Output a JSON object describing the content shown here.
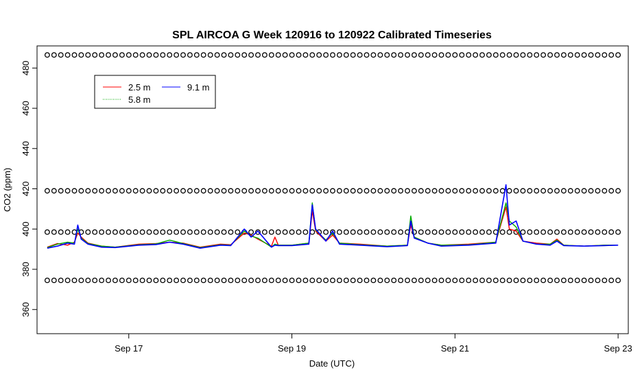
{
  "chart_data": {
    "type": "line",
    "title": "SPL AIRCOA G  Week 120916 to 120922  Calibrated Timeseries",
    "xlabel": "Date (UTC)",
    "ylabel": "CO2 (ppm)",
    "xlim": [
      "2012-09-15 21:00",
      "2012-09-23 03:00"
    ],
    "ylim": [
      348,
      491
    ],
    "x_ticks": [
      {
        "date": "2012-09-17 00:00",
        "label": "Sep 17"
      },
      {
        "date": "2012-09-19 00:00",
        "label": "Sep 19"
      },
      {
        "date": "2012-09-21 00:00",
        "label": "Sep 21"
      },
      {
        "date": "2012-09-23 00:00",
        "label": "Sep 23"
      }
    ],
    "y_ticks": [
      360,
      380,
      400,
      420,
      440,
      460,
      480
    ],
    "grid": false,
    "legend": {
      "placement": "top-left",
      "entries": [
        {
          "name": "2.5 m",
          "color": "#ff0000",
          "style": "solid"
        },
        {
          "name": "9.1 m",
          "color": "#0000ff",
          "style": "solid"
        },
        {
          "name": "5.8 m",
          "color": "#00aa00",
          "style": "dotted"
        }
      ]
    },
    "calibration_points": {
      "marker": "circle",
      "color": "#000000",
      "levels": [
        486.5,
        419,
        398.5,
        374.5
      ],
      "start": "2012-09-16 00:00",
      "end": "2012-09-23 00:00",
      "every_hours": 2
    },
    "series": [
      {
        "name": "2.5 m",
        "color": "#ff0000",
        "points": [
          [
            "2012-09-16 00:00",
            391
          ],
          [
            "2012-09-16 03:00",
            392.8
          ],
          [
            "2012-09-16 06:00",
            392
          ],
          [
            "2012-09-16 08:00",
            393.5
          ],
          [
            "2012-09-16 09:00",
            398
          ],
          [
            "2012-09-16 10:00",
            396
          ],
          [
            "2012-09-16 12:00",
            393
          ],
          [
            "2012-09-16 16:00",
            391.5
          ],
          [
            "2012-09-16 20:00",
            391
          ],
          [
            "2012-09-17 03:00",
            392.5
          ],
          [
            "2012-09-17 08:00",
            392.8
          ],
          [
            "2012-09-17 12:00",
            393.5
          ],
          [
            "2012-09-17 16:00",
            393
          ],
          [
            "2012-09-17 21:00",
            391
          ],
          [
            "2012-09-18 03:00",
            392.5
          ],
          [
            "2012-09-18 06:00",
            392.2
          ],
          [
            "2012-09-18 10:00",
            398
          ],
          [
            "2012-09-18 12:00",
            397
          ],
          [
            "2012-09-18 14:00",
            395
          ],
          [
            "2012-09-18 18:00",
            391.5
          ],
          [
            "2012-09-18 19:00",
            396
          ],
          [
            "2012-09-18 20:00",
            392
          ],
          [
            "2012-09-19 00:00",
            392
          ],
          [
            "2012-09-19 05:00",
            393
          ],
          [
            "2012-09-19 06:00",
            409
          ],
          [
            "2012-09-19 07:00",
            399
          ],
          [
            "2012-09-19 10:00",
            394
          ],
          [
            "2012-09-19 12:00",
            397
          ],
          [
            "2012-09-19 14:00",
            393
          ],
          [
            "2012-09-19 20:00",
            392.5
          ],
          [
            "2012-09-20 04:00",
            391.5
          ],
          [
            "2012-09-20 10:00",
            392
          ],
          [
            "2012-09-20 11:00",
            402
          ],
          [
            "2012-09-20 12:00",
            396
          ],
          [
            "2012-09-20 16:00",
            393
          ],
          [
            "2012-09-20 20:00",
            392
          ],
          [
            "2012-09-21 04:00",
            392.5
          ],
          [
            "2012-09-21 08:00",
            393
          ],
          [
            "2012-09-21 12:00",
            393.5
          ],
          [
            "2012-09-21 15:00",
            411
          ],
          [
            "2012-09-21 16:00",
            400
          ],
          [
            "2012-09-21 18:00",
            399
          ],
          [
            "2012-09-21 20:00",
            394
          ],
          [
            "2012-09-22 00:00",
            393
          ],
          [
            "2012-09-22 04:00",
            392.5
          ],
          [
            "2012-09-22 06:00",
            395
          ],
          [
            "2012-09-22 08:00",
            392
          ],
          [
            "2012-09-22 14:00",
            391.5
          ],
          [
            "2012-09-22 20:00",
            392
          ],
          [
            "2012-09-23 00:00",
            392
          ]
        ]
      },
      {
        "name": "5.8 m",
        "color": "#00aa00",
        "points": [
          [
            "2012-09-16 00:00",
            390.8
          ],
          [
            "2012-09-16 03:00",
            392.5
          ],
          [
            "2012-09-16 06:00",
            393.5
          ],
          [
            "2012-09-16 08:00",
            393
          ],
          [
            "2012-09-16 09:00",
            400
          ],
          [
            "2012-09-16 10:00",
            395.5
          ],
          [
            "2012-09-16 12:00",
            392.8
          ],
          [
            "2012-09-16 16:00",
            391.5
          ],
          [
            "2012-09-16 20:00",
            391
          ],
          [
            "2012-09-17 03:00",
            392.2
          ],
          [
            "2012-09-17 08:00",
            392.6
          ],
          [
            "2012-09-17 12:00",
            394.5
          ],
          [
            "2012-09-17 16:00",
            392.8
          ],
          [
            "2012-09-17 21:00",
            390.8
          ],
          [
            "2012-09-18 03:00",
            392.2
          ],
          [
            "2012-09-18 06:00",
            392
          ],
          [
            "2012-09-18 10:00",
            399
          ],
          [
            "2012-09-18 12:00",
            396.5
          ],
          [
            "2012-09-18 14:00",
            395.5
          ],
          [
            "2012-09-18 18:00",
            391
          ],
          [
            "2012-09-18 19:00",
            392.5
          ],
          [
            "2012-09-18 20:00",
            392
          ],
          [
            "2012-09-19 00:00",
            392
          ],
          [
            "2012-09-19 05:00",
            393
          ],
          [
            "2012-09-19 06:00",
            413
          ],
          [
            "2012-09-19 07:00",
            399.5
          ],
          [
            "2012-09-19 10:00",
            394.5
          ],
          [
            "2012-09-19 12:00",
            398
          ],
          [
            "2012-09-19 14:00",
            393
          ],
          [
            "2012-09-19 20:00",
            392.2
          ],
          [
            "2012-09-20 04:00",
            391.5
          ],
          [
            "2012-09-20 10:00",
            392
          ],
          [
            "2012-09-20 11:00",
            406.5
          ],
          [
            "2012-09-20 12:00",
            396
          ],
          [
            "2012-09-20 16:00",
            393
          ],
          [
            "2012-09-20 20:00",
            392
          ],
          [
            "2012-09-21 04:00",
            392.2
          ],
          [
            "2012-09-21 08:00",
            392.8
          ],
          [
            "2012-09-21 12:00",
            393.5
          ],
          [
            "2012-09-21 15:00",
            413
          ],
          [
            "2012-09-21 16:00",
            404
          ],
          [
            "2012-09-21 18:00",
            401
          ],
          [
            "2012-09-21 20:00",
            394
          ],
          [
            "2012-09-22 00:00",
            392.5
          ],
          [
            "2012-09-22 04:00",
            392.5
          ],
          [
            "2012-09-22 06:00",
            394.5
          ],
          [
            "2012-09-22 08:00",
            392
          ],
          [
            "2012-09-22 14:00",
            391.5
          ],
          [
            "2012-09-22 20:00",
            392
          ],
          [
            "2012-09-23 00:00",
            392
          ]
        ]
      },
      {
        "name": "9.1 m",
        "color": "#0000ff",
        "points": [
          [
            "2012-09-16 00:00",
            390.5
          ],
          [
            "2012-09-16 03:00",
            391.5
          ],
          [
            "2012-09-16 06:00",
            393
          ],
          [
            "2012-09-16 08:00",
            392.5
          ],
          [
            "2012-09-16 09:00",
            402
          ],
          [
            "2012-09-16 10:00",
            395
          ],
          [
            "2012-09-16 12:00",
            392.5
          ],
          [
            "2012-09-16 16:00",
            391
          ],
          [
            "2012-09-16 20:00",
            390.8
          ],
          [
            "2012-09-17 03:00",
            392
          ],
          [
            "2012-09-17 08:00",
            392.3
          ],
          [
            "2012-09-17 12:00",
            393.5
          ],
          [
            "2012-09-17 16:00",
            392.5
          ],
          [
            "2012-09-17 21:00",
            390.5
          ],
          [
            "2012-09-18 03:00",
            392
          ],
          [
            "2012-09-18 06:00",
            391.8
          ],
          [
            "2012-09-18 10:00",
            400
          ],
          [
            "2012-09-18 12:00",
            396
          ],
          [
            "2012-09-18 14:00",
            399
          ],
          [
            "2012-09-18 18:00",
            391
          ],
          [
            "2012-09-18 19:00",
            392
          ],
          [
            "2012-09-18 20:00",
            391.8
          ],
          [
            "2012-09-19 00:00",
            391.8
          ],
          [
            "2012-09-19 05:00",
            392.5
          ],
          [
            "2012-09-19 06:00",
            412
          ],
          [
            "2012-09-19 07:00",
            400
          ],
          [
            "2012-09-19 10:00",
            394
          ],
          [
            "2012-09-19 12:00",
            399
          ],
          [
            "2012-09-19 14:00",
            392.5
          ],
          [
            "2012-09-19 20:00",
            392
          ],
          [
            "2012-09-20 04:00",
            391.2
          ],
          [
            "2012-09-20 10:00",
            391.8
          ],
          [
            "2012-09-20 11:00",
            404
          ],
          [
            "2012-09-20 12:00",
            395.5
          ],
          [
            "2012-09-20 16:00",
            393
          ],
          [
            "2012-09-20 20:00",
            391.5
          ],
          [
            "2012-09-21 04:00",
            392
          ],
          [
            "2012-09-21 08:00",
            392.5
          ],
          [
            "2012-09-21 12:00",
            393
          ],
          [
            "2012-09-21 15:00",
            422
          ],
          [
            "2012-09-21 16:00",
            402
          ],
          [
            "2012-09-21 18:00",
            404
          ],
          [
            "2012-09-21 20:00",
            394
          ],
          [
            "2012-09-22 00:00",
            392.5
          ],
          [
            "2012-09-22 04:00",
            392
          ],
          [
            "2012-09-22 06:00",
            394
          ],
          [
            "2012-09-22 08:00",
            391.8
          ],
          [
            "2012-09-22 14:00",
            391.5
          ],
          [
            "2012-09-22 20:00",
            391.8
          ],
          [
            "2012-09-23 00:00",
            392
          ]
        ]
      }
    ]
  }
}
